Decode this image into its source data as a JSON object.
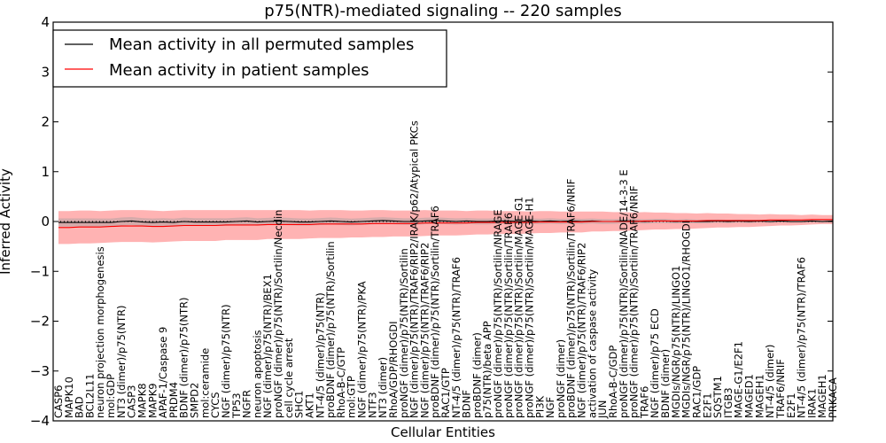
{
  "chart_data": {
    "type": "line",
    "title": "p75(NTR)-mediated signaling -- 220 samples",
    "xlabel": "Cellular Entities",
    "ylabel": "Inferred Activity",
    "ylim": [
      -4,
      4
    ],
    "yticks": [
      "4",
      "3",
      "2",
      "1",
      "0",
      "−1",
      "−2",
      "−3",
      "−4"
    ],
    "grid": false,
    "zero_line": "dotted",
    "legend_position": "top-left",
    "entities": [
      "CASP6",
      "MAPK10",
      "BAD",
      "BCL2L11",
      "neuron projection morphogenesis",
      "mol:GDP",
      "NT3 (dimer)/p75(NTR)",
      "CASP3",
      "MAPK8",
      "MAPK9",
      "APAF-1/Caspase 9",
      "PRDM4",
      "BDNF (dimer)/p75(NTR)",
      "SMPD2",
      "mol:ceramide",
      "CYCS",
      "NGF (dimer)/p75(NTR)",
      "TP53",
      "NGFR",
      "neuron apoptosis",
      "NGF (dimer)/p75(NTR)/BEX1",
      "proNGF (dimer)/p75(NTR)/Sortilin/Necdin",
      "cell cycle arrest",
      "SHC1",
      "AKT1",
      "NT-4/5 (dimer)/p75(NTR)",
      "proBDNF (dimer)/p75(NTR)/Sortilin",
      "RhoA-B-C/GTP",
      "mol:GTP",
      "NGF (dimer)/p75(NTR)/PKA",
      "NTF3",
      "NT3 (dimer)",
      "RhoA/GDP/RHOGDI",
      "proNGF (dimer)/p75(NTR)/Sortilin",
      "NGF (dimer)/p75(NTR)/TRAF6/RIP2/IRAK/p62/Atypical PKCs",
      "NGF (dimer)/p75(NTR)/TRAF6/RIP2",
      "proBDNF (dimer)/p75(NTR)/Sortilin/TRAF6",
      "RAC1/GTP",
      "NT-4/5 (dimer)/p75(NTR)/TRAF6",
      "BDNF",
      "proBDNF (dimer)",
      "p75(NTR)/beta APP",
      "proNGF (dimer)/p75(NTR)/Sortilin/NRAGE",
      "proNGF (dimer)/p75(NTR)/Sortilin/TRAF6",
      "proNGF (dimer)/p75(NTR)/Sortilin/MAGE-G1",
      "proNGF (dimer)/p75(NTR)/Sortilin/MAGE-H1",
      "PI3K",
      "NGF",
      "proNGF (dimer)",
      "proBDNF (dimer)/p75(NTR)/Sortilin/TRAF6/NRIF",
      "NGF (dimer)/p75(NTR)/TRAF6/RIP2",
      "activation of caspase activity",
      "JUN",
      "RhoA-B-C/GDP",
      "proNGF (dimer)/p75(NTR)/Sortilin/NADE/14-3-3 E",
      "proNGF (dimer)/p75(NTR)/Sortilin/TRAF6/NRIF",
      "TRAF6",
      "NGF (dimer)/p75 ECD",
      "BDNF (dimer)",
      "MGDIs/NGR/p75(NTR)/LINGO1",
      "MGDIs/NGR/p75(NTR)/LINGO1/RHOGDI",
      "RAC1/GDP",
      "E2F1",
      "SQSTM1",
      "ITGB3",
      "MAGE-G1/E2F1",
      "MAGED1",
      "MAGEH1",
      "NT-4/5 (dimer)",
      "TRAF6/NRIF",
      "E2F1",
      "NT-4/5 (dimer)/p75(NTR)/TRAF6",
      "IRAK1",
      "MAGEH1",
      "PRKACA"
    ],
    "series": [
      {
        "name": "Mean activity in all permuted samples",
        "color": "#000000",
        "values": [
          -0.02,
          -0.02,
          -0.02,
          -0.02,
          -0.02,
          -0.02,
          0.0,
          0.01,
          -0.01,
          -0.02,
          -0.01,
          -0.02,
          0.0,
          -0.01,
          -0.01,
          -0.01,
          -0.01,
          0.0,
          0.01,
          -0.01,
          0.0,
          0.01,
          0.0,
          -0.01,
          -0.01,
          0.0,
          0.01,
          0.0,
          -0.01,
          0.0,
          0.01,
          0.02,
          0.01,
          0.0,
          0.0,
          0.01,
          0.02,
          0.01,
          0.0,
          0.01,
          0.0,
          0.0,
          0.01,
          0.01,
          0.0,
          0.01,
          0.0,
          0.01,
          0.0,
          0.01,
          0.0,
          0.01,
          0.0,
          0.0,
          0.01,
          0.01,
          0.0,
          0.01,
          0.01,
          0.0,
          0.01,
          0.0,
          0.0,
          0.01,
          0.0,
          0.01,
          0.0,
          0.01,
          0.0,
          0.01,
          0.0,
          0.0,
          0.01,
          0.0,
          0.01
        ]
      },
      {
        "name": "Mean activity in patient samples",
        "color": "#ff0000",
        "values": [
          -0.12,
          -0.12,
          -0.11,
          -0.11,
          -0.11,
          -0.1,
          -0.09,
          -0.09,
          -0.09,
          -0.1,
          -0.1,
          -0.09,
          -0.08,
          -0.08,
          -0.08,
          -0.08,
          -0.07,
          -0.07,
          -0.07,
          -0.07,
          -0.06,
          -0.06,
          -0.06,
          -0.06,
          -0.06,
          -0.05,
          -0.05,
          -0.05,
          -0.05,
          -0.05,
          -0.04,
          -0.04,
          -0.04,
          -0.04,
          -0.04,
          -0.03,
          -0.03,
          -0.03,
          -0.03,
          -0.03,
          -0.02,
          -0.02,
          -0.02,
          -0.02,
          -0.02,
          -0.02,
          -0.01,
          -0.01,
          -0.01,
          -0.01,
          -0.01,
          0.0,
          0.0,
          0.0,
          0.0,
          0.0,
          0.01,
          0.01,
          0.01,
          0.01,
          0.01,
          0.01,
          0.02,
          0.02,
          0.02,
          0.02,
          0.02,
          0.02,
          0.03,
          0.03,
          0.03,
          0.03,
          0.04,
          0.04,
          0.04
        ]
      }
    ],
    "band_half_width": [
      0.33,
      0.33,
      0.33,
      0.33,
      0.32,
      0.32,
      0.32,
      0.32,
      0.32,
      0.32,
      0.31,
      0.31,
      0.31,
      0.31,
      0.31,
      0.31,
      0.3,
      0.3,
      0.3,
      0.3,
      0.29,
      0.29,
      0.29,
      0.29,
      0.28,
      0.28,
      0.28,
      0.28,
      0.27,
      0.27,
      0.27,
      0.27,
      0.26,
      0.26,
      0.26,
      0.26,
      0.25,
      0.25,
      0.25,
      0.24,
      0.24,
      0.24,
      0.23,
      0.23,
      0.23,
      0.22,
      0.22,
      0.22,
      0.21,
      0.21,
      0.21,
      0.2,
      0.2,
      0.19,
      0.19,
      0.18,
      0.18,
      0.17,
      0.17,
      0.16,
      0.16,
      0.15,
      0.15,
      0.14,
      0.14,
      0.13,
      0.13,
      0.12,
      0.12,
      0.11,
      0.11,
      0.1,
      0.1,
      0.09,
      0.09
    ],
    "colors": {
      "permuted": "#000000",
      "patient": "#ff0000",
      "band_patient": "#ff8080",
      "band_permuted": "#a0a0a0"
    }
  }
}
